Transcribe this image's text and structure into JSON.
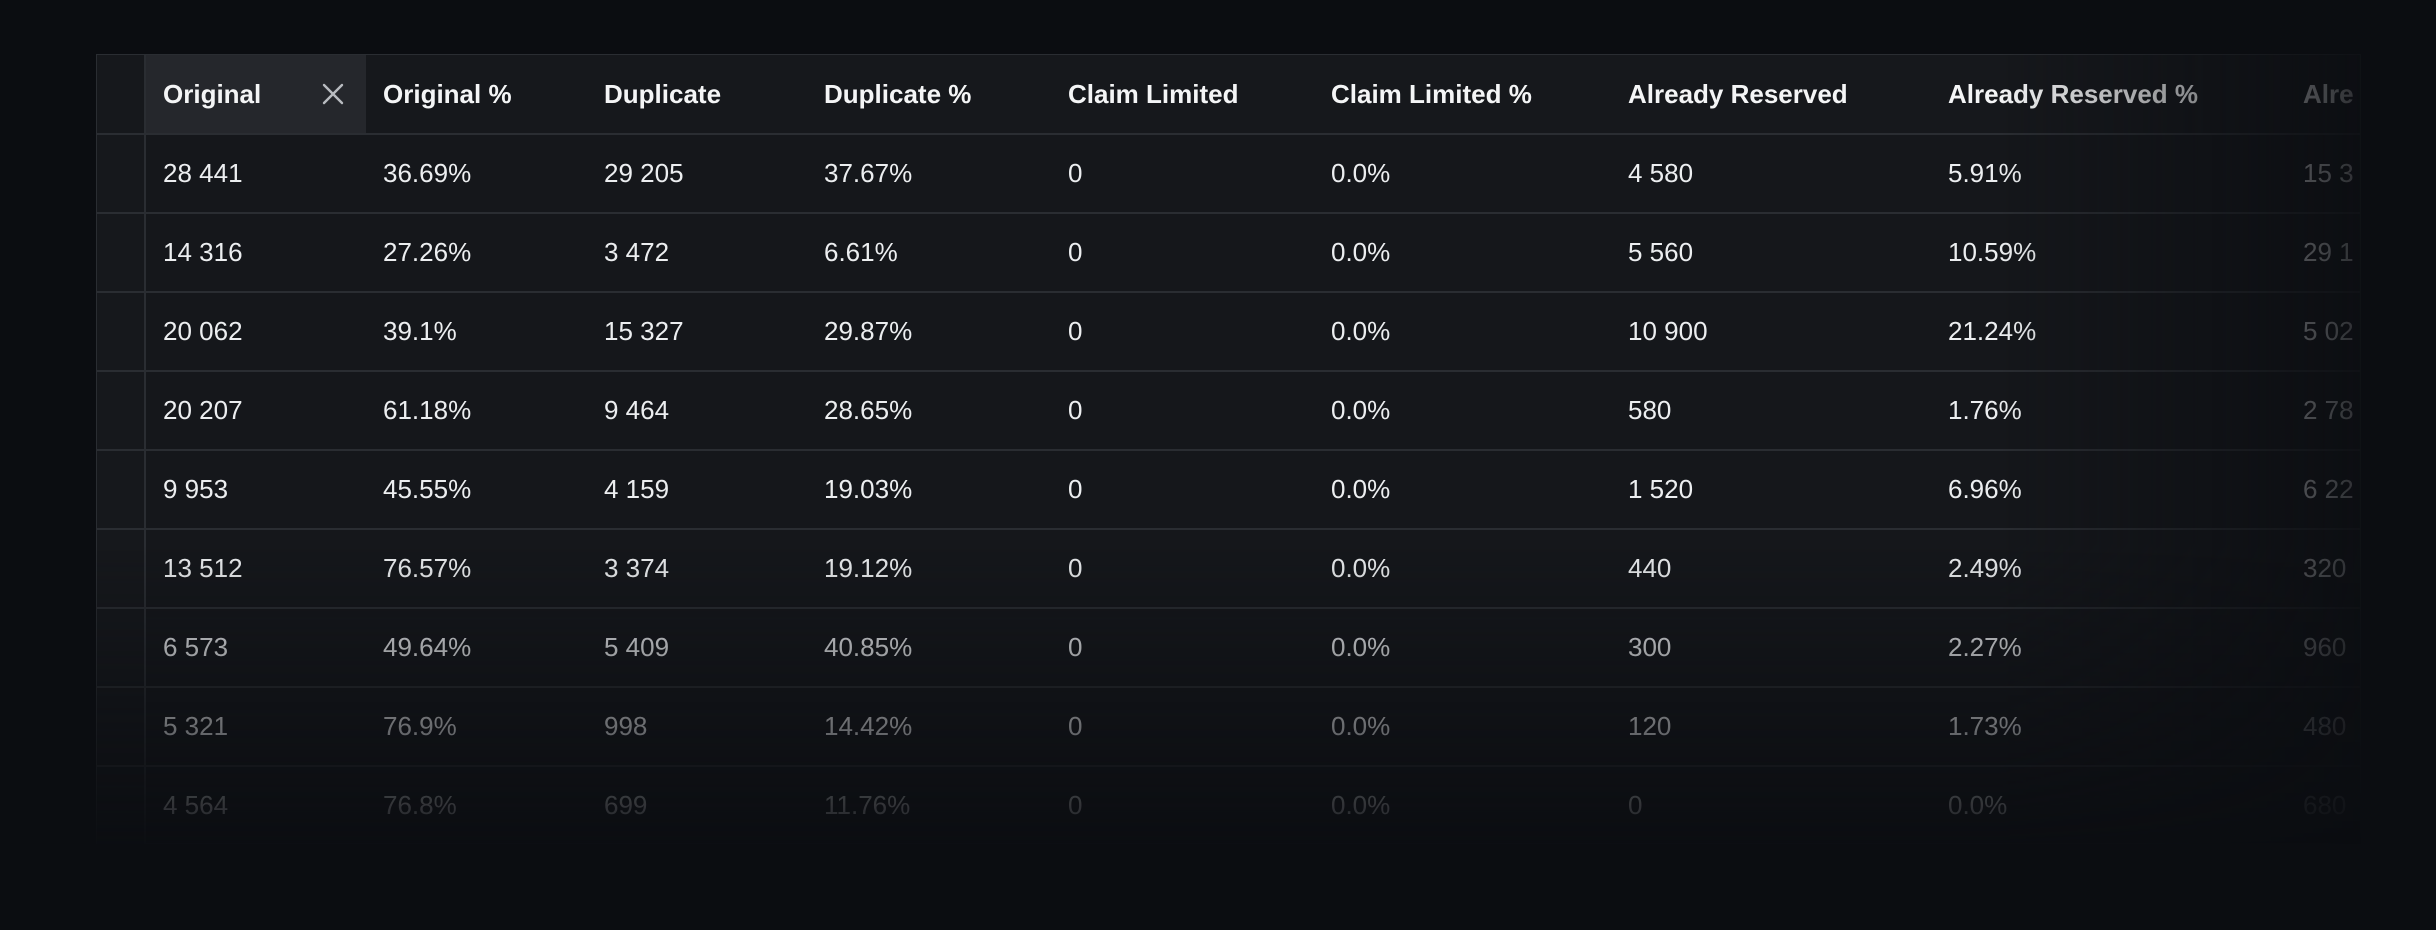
{
  "table": {
    "columns": [
      "Original",
      "Original %",
      "Duplicate",
      "Duplicate %",
      "Claim Limited",
      "Claim Limited %",
      "Already Reserved",
      "Already Reserved %",
      "Alre"
    ],
    "rows": [
      [
        "28 441",
        "36.69%",
        "29 205",
        "37.67%",
        "0",
        "0.0%",
        "4 580",
        "5.91%",
        "15 3"
      ],
      [
        "14 316",
        "27.26%",
        "3 472",
        "6.61%",
        "0",
        "0.0%",
        "5 560",
        "10.59%",
        "29 1"
      ],
      [
        "20 062",
        "39.1%",
        "15 327",
        "29.87%",
        "0",
        "0.0%",
        "10 900",
        "21.24%",
        "5 02"
      ],
      [
        "20 207",
        "61.18%",
        "9 464",
        "28.65%",
        "0",
        "0.0%",
        "580",
        "1.76%",
        "2 78"
      ],
      [
        "9 953",
        "45.55%",
        "4 159",
        "19.03%",
        "0",
        "0.0%",
        "1 520",
        "6.96%",
        "6 22"
      ],
      [
        "13 512",
        "76.57%",
        "3 374",
        "19.12%",
        "0",
        "0.0%",
        "440",
        "2.49%",
        "320"
      ],
      [
        "6 573",
        "49.64%",
        "5 409",
        "40.85%",
        "0",
        "0.0%",
        "300",
        "2.27%",
        "960"
      ],
      [
        "5 321",
        "76.9%",
        "998",
        "14.42%",
        "0",
        "0.0%",
        "120",
        "1.73%",
        "480"
      ],
      [
        "4 564",
        "76.8%",
        "699",
        "11.76%",
        "0",
        "0.0%",
        "0",
        "0.0%",
        "680"
      ]
    ]
  }
}
